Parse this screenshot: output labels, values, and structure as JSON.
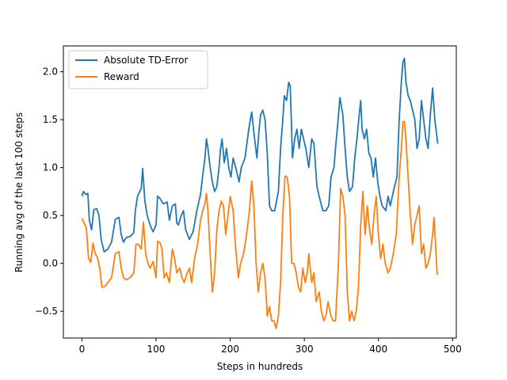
{
  "chart_data": {
    "type": "line",
    "xlabel": "Steps in hundreds",
    "ylabel": "Running  avg of the last 100 steps",
    "xlim": [
      -25,
      505
    ],
    "ylim": [
      -0.78,
      2.27
    ],
    "xticks": [
      0,
      100,
      200,
      300,
      400,
      500
    ],
    "yticks": [
      -0.5,
      0.0,
      0.5,
      1.0,
      1.5,
      2.0
    ],
    "xtick_labels": [
      "0",
      "100",
      "200",
      "300",
      "400",
      "500"
    ],
    "ytick_labels": [
      "−0.5",
      "0.0",
      "0.5",
      "1.0",
      "1.5",
      "2.0"
    ],
    "grid": false,
    "legend_position": "top-left",
    "series": [
      {
        "name": "Absolute TD-Error",
        "color": "#1f77b4",
        "points": [
          [
            0,
            0.7
          ],
          [
            2,
            0.75
          ],
          [
            5,
            0.72
          ],
          [
            8,
            0.73
          ],
          [
            10,
            0.45
          ],
          [
            13,
            0.35
          ],
          [
            16,
            0.56
          ],
          [
            20,
            0.57
          ],
          [
            23,
            0.5
          ],
          [
            26,
            0.25
          ],
          [
            30,
            0.12
          ],
          [
            35,
            0.15
          ],
          [
            40,
            0.22
          ],
          [
            45,
            0.46
          ],
          [
            50,
            0.48
          ],
          [
            53,
            0.3
          ],
          [
            56,
            0.22
          ],
          [
            60,
            0.27
          ],
          [
            65,
            0.28
          ],
          [
            70,
            0.32
          ],
          [
            72,
            0.55
          ],
          [
            75,
            0.7
          ],
          [
            78,
            0.75
          ],
          [
            80,
            0.78
          ],
          [
            82,
            0.99
          ],
          [
            85,
            0.65
          ],
          [
            88,
            0.5
          ],
          [
            90,
            0.45
          ],
          [
            93,
            0.38
          ],
          [
            96,
            0.33
          ],
          [
            100,
            0.4
          ],
          [
            102,
            0.7
          ],
          [
            105,
            0.68
          ],
          [
            110,
            0.62
          ],
          [
            115,
            0.64
          ],
          [
            118,
            0.45
          ],
          [
            122,
            0.6
          ],
          [
            126,
            0.62
          ],
          [
            128,
            0.42
          ],
          [
            130,
            0.4
          ],
          [
            134,
            0.5
          ],
          [
            137,
            0.55
          ],
          [
            140,
            0.35
          ],
          [
            145,
            0.25
          ],
          [
            150,
            0.33
          ],
          [
            155,
            0.55
          ],
          [
            160,
            0.72
          ],
          [
            163,
            0.92
          ],
          [
            166,
            1.1
          ],
          [
            168,
            1.3
          ],
          [
            170,
            1.2
          ],
          [
            173,
            1.0
          ],
          [
            176,
            0.85
          ],
          [
            179,
            0.75
          ],
          [
            182,
            0.8
          ],
          [
            185,
            1.0
          ],
          [
            187,
            1.2
          ],
          [
            189,
            1.3
          ],
          [
            192,
            1.05
          ],
          [
            195,
            1.2
          ],
          [
            198,
            1.0
          ],
          [
            201,
            0.9
          ],
          [
            204,
            1.1
          ],
          [
            208,
            0.98
          ],
          [
            212,
            0.85
          ],
          [
            215,
            1.0
          ],
          [
            220,
            1.1
          ],
          [
            225,
            1.4
          ],
          [
            229,
            1.58
          ],
          [
            233,
            1.3
          ],
          [
            236,
            1.1
          ],
          [
            239,
            1.4
          ],
          [
            241,
            1.55
          ],
          [
            244,
            1.6
          ],
          [
            247,
            1.5
          ],
          [
            250,
            1.15
          ],
          [
            253,
            0.6
          ],
          [
            256,
            0.55
          ],
          [
            260,
            0.55
          ],
          [
            265,
            0.75
          ],
          [
            268,
            1.2
          ],
          [
            271,
            1.5
          ],
          [
            273,
            1.75
          ],
          [
            276,
            1.7
          ],
          [
            279,
            1.89
          ],
          [
            281,
            1.85
          ],
          [
            284,
            1.1
          ],
          [
            287,
            1.3
          ],
          [
            290,
            1.4
          ],
          [
            293,
            1.2
          ],
          [
            296,
            1.4
          ],
          [
            299,
            1.3
          ],
          [
            302,
            1.2
          ],
          [
            306,
            1.0
          ],
          [
            310,
            1.3
          ],
          [
            313,
            1.25
          ],
          [
            317,
            0.8
          ],
          [
            320,
            0.7
          ],
          [
            325,
            0.55
          ],
          [
            329,
            0.55
          ],
          [
            333,
            0.6
          ],
          [
            336,
            0.9
          ],
          [
            340,
            1.0
          ],
          [
            342,
            1.2
          ],
          [
            345,
            1.45
          ],
          [
            348,
            1.73
          ],
          [
            352,
            1.55
          ],
          [
            355,
            1.2
          ],
          [
            358,
            0.9
          ],
          [
            361,
            0.75
          ],
          [
            365,
            0.8
          ],
          [
            368,
            1.1
          ],
          [
            371,
            1.3
          ],
          [
            374,
            1.55
          ],
          [
            376,
            1.7
          ],
          [
            378,
            1.4
          ],
          [
            381,
            1.3
          ],
          [
            384,
            1.4
          ],
          [
            387,
            1.15
          ],
          [
            390,
            1.1
          ],
          [
            393,
            0.9
          ],
          [
            396,
            1.1
          ],
          [
            399,
            0.85
          ],
          [
            402,
            0.7
          ],
          [
            405,
            0.6
          ],
          [
            410,
            0.55
          ],
          [
            413,
            0.7
          ],
          [
            416,
            0.6
          ],
          [
            420,
            0.75
          ],
          [
            425,
            0.9
          ],
          [
            428,
            1.5
          ],
          [
            431,
            1.9
          ],
          [
            433,
            2.1
          ],
          [
            435,
            2.14
          ],
          [
            437,
            1.9
          ],
          [
            440,
            1.75
          ],
          [
            443,
            1.7
          ],
          [
            446,
            1.6
          ],
          [
            449,
            1.5
          ],
          [
            452,
            1.2
          ],
          [
            455,
            1.3
          ],
          [
            458,
            1.7
          ],
          [
            461,
            1.5
          ],
          [
            464,
            1.3
          ],
          [
            467,
            1.2
          ],
          [
            470,
            1.55
          ],
          [
            473,
            1.83
          ],
          [
            476,
            1.5
          ],
          [
            480,
            1.25
          ]
        ]
      },
      {
        "name": "Reward",
        "color": "#ff7f0e",
        "points": [
          [
            0,
            0.47
          ],
          [
            3,
            0.42
          ],
          [
            6,
            0.37
          ],
          [
            9,
            0.05
          ],
          [
            12,
            0.01
          ],
          [
            15,
            0.21
          ],
          [
            18,
            0.1
          ],
          [
            21,
            0.06
          ],
          [
            24,
            -0.05
          ],
          [
            27,
            -0.25
          ],
          [
            31,
            -0.24
          ],
          [
            35,
            -0.2
          ],
          [
            40,
            -0.15
          ],
          [
            45,
            0.1
          ],
          [
            50,
            0.12
          ],
          [
            53,
            -0.05
          ],
          [
            56,
            -0.15
          ],
          [
            60,
            -0.17
          ],
          [
            65,
            -0.15
          ],
          [
            70,
            -0.1
          ],
          [
            73,
            0.2
          ],
          [
            76,
            0.2
          ],
          [
            80,
            0.15
          ],
          [
            83,
            0.43
          ],
          [
            86,
            0.1
          ],
          [
            89,
            0.0
          ],
          [
            92,
            -0.05
          ],
          [
            96,
            0.02
          ],
          [
            100,
            -0.15
          ],
          [
            102,
            0.23
          ],
          [
            105,
            0.22
          ],
          [
            108,
            0.15
          ],
          [
            111,
            -0.15
          ],
          [
            114,
            -0.1
          ],
          [
            118,
            -0.2
          ],
          [
            122,
            0.15
          ],
          [
            125,
            0.05
          ],
          [
            128,
            -0.1
          ],
          [
            132,
            -0.05
          ],
          [
            135,
            -0.15
          ],
          [
            138,
            -0.2
          ],
          [
            142,
            -0.1
          ],
          [
            145,
            -0.05
          ],
          [
            148,
            -0.2
          ],
          [
            152,
            0.05
          ],
          [
            156,
            0.2
          ],
          [
            160,
            0.45
          ],
          [
            163,
            0.55
          ],
          [
            166,
            0.62
          ],
          [
            168,
            0.73
          ],
          [
            170,
            0.55
          ],
          [
            173,
            0.1
          ],
          [
            176,
            -0.3
          ],
          [
            179,
            -0.1
          ],
          [
            182,
            0.35
          ],
          [
            185,
            0.55
          ],
          [
            188,
            0.65
          ],
          [
            191,
            0.6
          ],
          [
            194,
            0.3
          ],
          [
            197,
            0.5
          ],
          [
            200,
            0.7
          ],
          [
            204,
            0.55
          ],
          [
            207,
            0.2
          ],
          [
            211,
            -0.15
          ],
          [
            214,
            0.0
          ],
          [
            218,
            0.1
          ],
          [
            222,
            0.3
          ],
          [
            226,
            0.55
          ],
          [
            229,
            0.86
          ],
          [
            232,
            0.6
          ],
          [
            235,
            0.0
          ],
          [
            238,
            -0.3
          ],
          [
            241,
            -0.1
          ],
          [
            244,
            0.0
          ],
          [
            247,
            -0.15
          ],
          [
            250,
            -0.55
          ],
          [
            253,
            -0.45
          ],
          [
            256,
            -0.6
          ],
          [
            259,
            -0.6
          ],
          [
            262,
            -0.68
          ],
          [
            265,
            -0.55
          ],
          [
            268,
            -0.2
          ],
          [
            271,
            0.5
          ],
          [
            274,
            0.91
          ],
          [
            277,
            0.9
          ],
          [
            280,
            0.7
          ],
          [
            283,
            0.0
          ],
          [
            286,
            0.0
          ],
          [
            289,
            -0.1
          ],
          [
            292,
            -0.25
          ],
          [
            295,
            -0.3
          ],
          [
            298,
            -0.05
          ],
          [
            301,
            -0.2
          ],
          [
            304,
            -0.1
          ],
          [
            306,
            0.1
          ],
          [
            310,
            -0.2
          ],
          [
            313,
            -0.1
          ],
          [
            316,
            -0.4
          ],
          [
            320,
            -0.3
          ],
          [
            323,
            -0.5
          ],
          [
            326,
            -0.6
          ],
          [
            329,
            -0.55
          ],
          [
            332,
            -0.4
          ],
          [
            336,
            -0.55
          ],
          [
            339,
            -0.6
          ],
          [
            342,
            -0.6
          ],
          [
            346,
            0.0
          ],
          [
            349,
            0.78
          ],
          [
            352,
            0.7
          ],
          [
            355,
            0.5
          ],
          [
            358,
            -0.3
          ],
          [
            361,
            -0.6
          ],
          [
            364,
            -0.5
          ],
          [
            367,
            -0.6
          ],
          [
            370,
            -0.5
          ],
          [
            373,
            -0.25
          ],
          [
            376,
            0.4
          ],
          [
            379,
            0.75
          ],
          [
            382,
            0.3
          ],
          [
            385,
            0.6
          ],
          [
            388,
            0.35
          ],
          [
            391,
            0.2
          ],
          [
            394,
            0.5
          ],
          [
            397,
            0.7
          ],
          [
            400,
            0.3
          ],
          [
            403,
            0.05
          ],
          [
            406,
            0.2
          ],
          [
            409,
            0.0
          ],
          [
            413,
            -0.1
          ],
          [
            416,
            -0.05
          ],
          [
            420,
            0.1
          ],
          [
            424,
            0.3
          ],
          [
            428,
            0.9
          ],
          [
            431,
            1.2
          ],
          [
            433,
            1.48
          ],
          [
            435,
            1.48
          ],
          [
            437,
            1.3
          ],
          [
            440,
            0.9
          ],
          [
            443,
            0.5
          ],
          [
            446,
            0.2
          ],
          [
            449,
            0.4
          ],
          [
            452,
            0.5
          ],
          [
            455,
            0.6
          ],
          [
            458,
            0.1
          ],
          [
            461,
            0.2
          ],
          [
            464,
            -0.05
          ],
          [
            467,
            0.0
          ],
          [
            470,
            0.1
          ],
          [
            473,
            0.3
          ],
          [
            475,
            0.48
          ],
          [
            477,
            0.2
          ],
          [
            479,
            -0.1
          ],
          [
            480,
            -0.12
          ]
        ]
      }
    ]
  }
}
